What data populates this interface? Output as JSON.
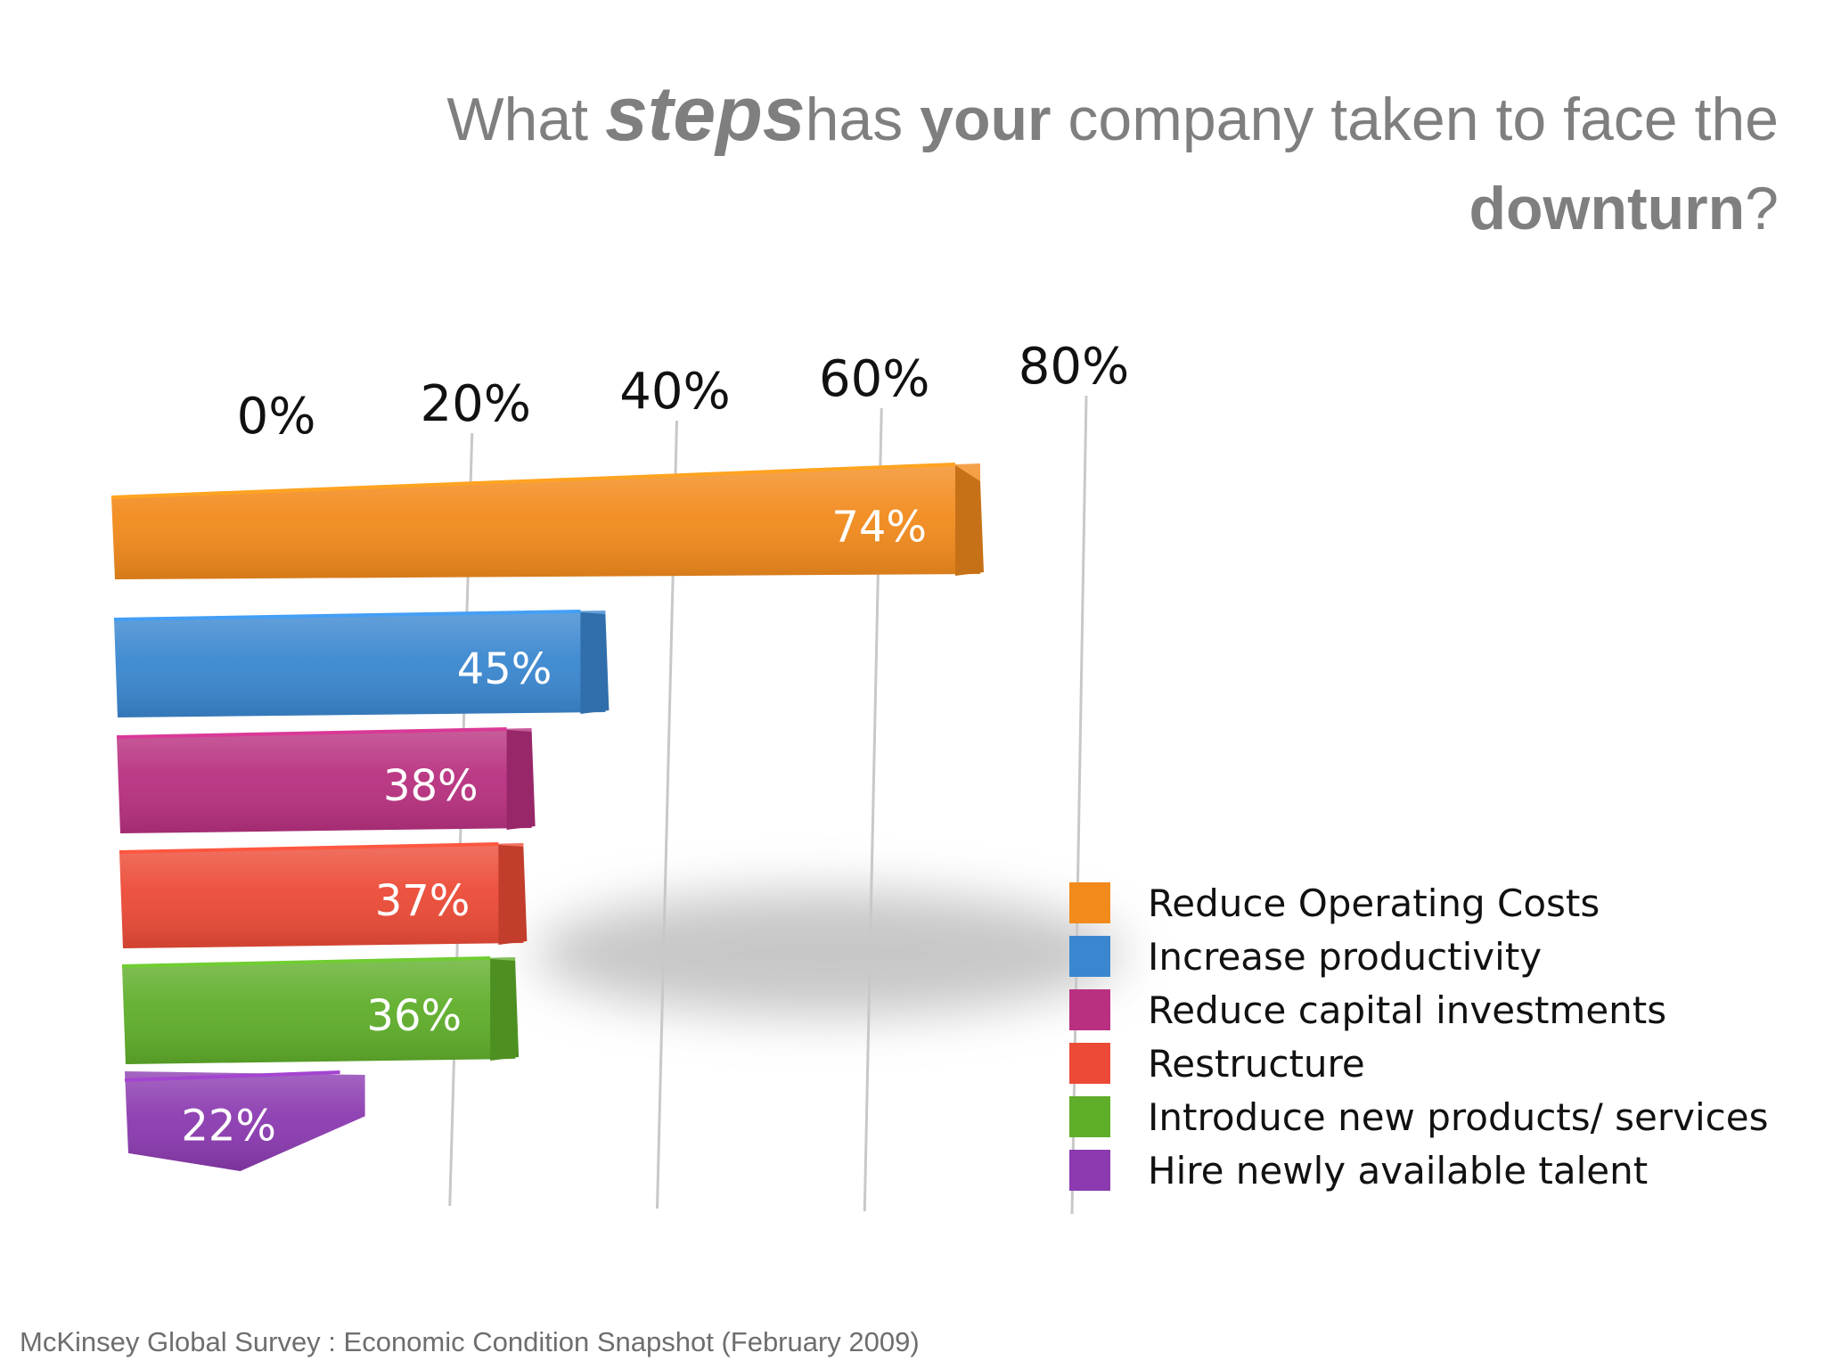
{
  "title": {
    "part1": "What ",
    "part2": "steps",
    "part3": "has ",
    "part4": "your",
    "part5": " company taken to face the",
    "part6": "downturn",
    "part7": "?"
  },
  "source": "McKinsey Global Survey : Economic Condition Snapshot (February 2009)",
  "chart_data": {
    "type": "bar",
    "orientation": "horizontal",
    "title": "What stepshas your company taken to face the downturn?",
    "categories": [
      "Reduce Operating Costs",
      "Increase productivity",
      "Reduce capital investments",
      "Restructure",
      "Introduce new products/ services",
      "Hire newly available talent"
    ],
    "values": [
      74,
      45,
      38,
      37,
      36,
      22
    ],
    "value_labels": [
      "74%",
      "45%",
      "38%",
      "37%",
      "36%",
      "22%"
    ],
    "colors": [
      "#f28a1c",
      "#3a87d0",
      "#b8307f",
      "#ec4a36",
      "#5fae2a",
      "#8b3ab0"
    ],
    "xlim": [
      0,
      80
    ],
    "ticks": [
      0,
      20,
      40,
      60,
      80
    ],
    "tick_labels": [
      "0%",
      "20%",
      "40%",
      "60%",
      "80%"
    ],
    "grid": true,
    "legend_position": "bottom-right",
    "style": "3d"
  }
}
